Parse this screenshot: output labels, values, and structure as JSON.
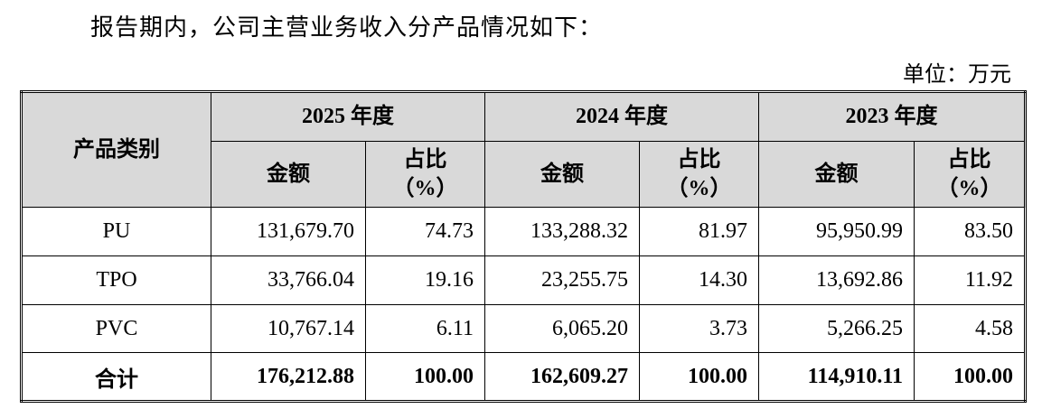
{
  "intro": "报告期内，公司主营业务收入分产品情况如下：",
  "unit": "单位：万元",
  "table": {
    "category_header": "产品类别",
    "groups": [
      {
        "year": "2025 年度",
        "amount": "金额",
        "share": [
          "占比",
          "（%）"
        ]
      },
      {
        "year": "2024 年度",
        "amount": "金额",
        "share": [
          "占比",
          "（%）"
        ]
      },
      {
        "year": "2023 年度",
        "amount": "金额",
        "share": [
          "占比",
          "（%）"
        ]
      }
    ],
    "rows": [
      [
        "PU",
        "131,679.70",
        "74.73",
        "133,288.32",
        "81.97",
        "95,950.99",
        "83.50"
      ],
      [
        "TPO",
        "33,766.04",
        "19.16",
        "23,255.75",
        "14.30",
        "13,692.86",
        "11.92"
      ],
      [
        "PVC",
        "10,767.14",
        "6.11",
        "6,065.20",
        "3.73",
        "5,266.25",
        "4.58"
      ],
      [
        "合计",
        "176,212.88",
        "100.00",
        "162,609.27",
        "100.00",
        "114,910.11",
        "100.00"
      ]
    ]
  }
}
